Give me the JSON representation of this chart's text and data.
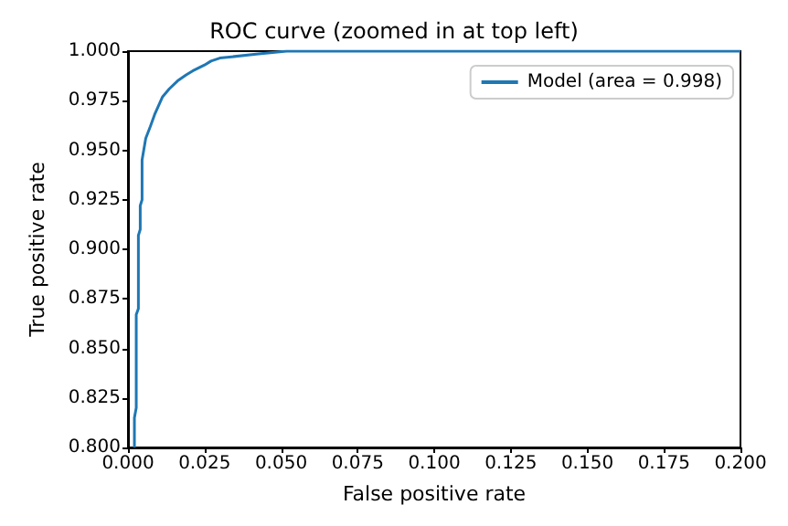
{
  "chart_data": {
    "type": "line",
    "title": "ROC curve (zoomed in at top left)",
    "xlabel": "False positive rate",
    "ylabel": "True positive rate",
    "series": [
      {
        "name": "Model (area = 0.998)",
        "color": "#1f77b4",
        "x": [
          0.0021,
          0.0021,
          0.0027,
          0.0027,
          0.0034,
          0.0034,
          0.004,
          0.004,
          0.0046,
          0.0046,
          0.0058,
          0.0073,
          0.0087,
          0.0113,
          0.0135,
          0.0162,
          0.019,
          0.0211,
          0.025,
          0.0271,
          0.03,
          0.0419,
          0.0518,
          0.2
        ],
        "values": [
          0.8,
          0.815,
          0.82,
          0.867,
          0.87,
          0.907,
          0.91,
          0.922,
          0.925,
          0.945,
          0.956,
          0.962,
          0.968,
          0.977,
          0.981,
          0.985,
          0.988,
          0.99,
          0.993,
          0.995,
          0.9965,
          0.9985,
          1.0,
          1.0
        ]
      }
    ],
    "xlim": [
      0,
      0.2
    ],
    "ylim": [
      0.8,
      1.0
    ],
    "xticks": [
      {
        "value": 0,
        "label": "0.000"
      },
      0.025,
      {
        "value": 0.05,
        "label": "0.050"
      },
      0.075,
      {
        "value": 0.1,
        "label": "0.100"
      },
      0.125,
      {
        "value": 0.15,
        "label": "0.150"
      },
      0.175,
      {
        "value": 0.2,
        "label": "0.200"
      }
    ],
    "yticks": [
      {
        "value": 0.8,
        "label": "0.800"
      },
      0.825,
      {
        "value": 0.85,
        "label": "0.850"
      },
      0.875,
      {
        "value": 0.9,
        "label": "0.900"
      },
      0.925,
      {
        "value": 0.95,
        "label": "0.950"
      },
      0.975,
      {
        "value": 1,
        "label": "1.000"
      }
    ],
    "grid": false,
    "legend": "top right",
    "marker": "none",
    "line_style": "solid"
  }
}
